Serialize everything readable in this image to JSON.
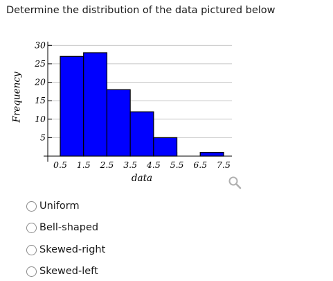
{
  "question": {
    "text": "Determine the distribution of the data pictured below"
  },
  "chart_data": {
    "type": "bar",
    "xlabel": "data",
    "ylabel": "Frequency",
    "categories": [
      "0.5-1.5",
      "1.5-2.5",
      "2.5-3.5",
      "3.5-4.5",
      "4.5-5.5",
      "5.5-6.5",
      "6.5-7.5"
    ],
    "bin_edges": [
      0.5,
      1.5,
      2.5,
      3.5,
      4.5,
      5.5,
      6.5,
      7.5
    ],
    "values": [
      27,
      28,
      18,
      12,
      5,
      0,
      1
    ],
    "x_ticks": [
      "0.5",
      "1.5",
      "2.5",
      "3.5",
      "4.5",
      "5.5",
      "6.5",
      "7.5"
    ],
    "y_ticks": [
      "5",
      "10",
      "15",
      "20",
      "25",
      "30"
    ],
    "ylim": [
      0,
      31
    ],
    "xlim": [
      0.5,
      7.5
    ],
    "grid": true,
    "bar_color": "#0000ff",
    "bar_edge_color": "#000000"
  },
  "options": [
    {
      "label": "Uniform"
    },
    {
      "label": "Bell-shaped"
    },
    {
      "label": "Skewed-right"
    },
    {
      "label": "Skewed-left"
    }
  ],
  "icons": {
    "zoom": "magnifier-icon"
  }
}
